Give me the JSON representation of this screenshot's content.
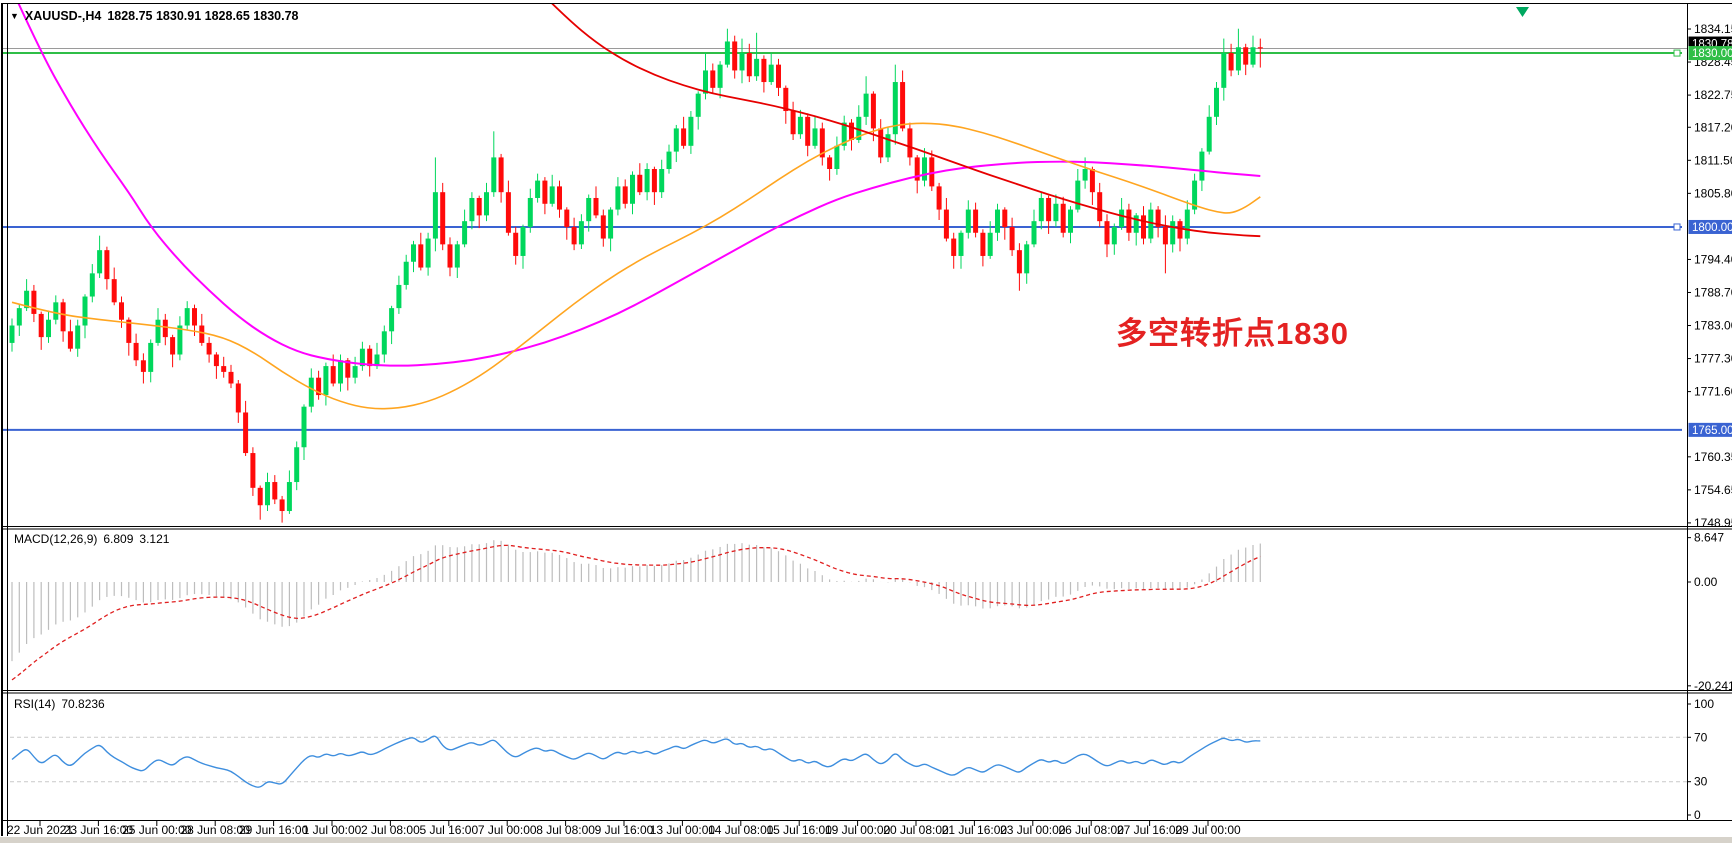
{
  "title": {
    "symbol": "XAUUSD-,H4",
    "ohlc": "1828.75 1830.91 1828.65 1830.78"
  },
  "annotation": {
    "text": "多空转折点1830",
    "color": "#E42222"
  },
  "macd_panel": {
    "header": "MACD(12,26,9)",
    "value_main": "6.809",
    "value_signal": "3.121",
    "axis_labels": [
      "8.647",
      "0.00",
      "-20.241"
    ]
  },
  "rsi_panel": {
    "header": "RSI(14)",
    "value": "70.8236",
    "axis_labels": [
      "100",
      "70",
      "30",
      "0"
    ]
  },
  "price_axis": {
    "ticks": [
      1834.15,
      1828.45,
      1822.75,
      1817.2,
      1811.5,
      1805.8,
      1794.4,
      1788.7,
      1783.0,
      1777.3,
      1771.6,
      1760.35,
      1754.65,
      1748.95
    ],
    "current_price_label": {
      "text": "1830.78",
      "bg": "#000000",
      "fg": "#FFFFFF"
    }
  },
  "hlines": [
    {
      "price": 1830.0,
      "label": "1830.00",
      "color": "#2FBE47",
      "handle": true
    },
    {
      "price": 1800.0,
      "label": "1800.00",
      "color": "#3A63D2",
      "handle": true
    },
    {
      "price": 1765.0,
      "label": "1765.00",
      "color": "#3A63D2",
      "handle": false
    }
  ],
  "time_axis": {
    "labels": [
      "22 Jun 2021",
      "23 Jun 16:00",
      "25 Jun 00:00",
      "28 Jun 08:00",
      "29 Jun 16:00",
      "1 Jul 00:00",
      "2 Jul 08:00",
      "5 Jul 16:00",
      "7 Jul 00:00",
      "8 Jul 08:00",
      "9 Jul 16:00",
      "13 Jul 00:00",
      "14 Jul 08:00",
      "15 Jul 16:00",
      "19 Jul 00:00",
      "20 Jul 08:00",
      "21 Jul 16:00",
      "23 Jul 00:00",
      "26 Jul 08:00",
      "27 Jul 16:00",
      "29 Jul 00:00"
    ]
  },
  "colors": {
    "candle_up": "#00D75C",
    "candle_down": "#FF0A0A",
    "ma_slow": "#FF00FF",
    "ma_mid": "#FFA520",
    "ma_trend": "#E60000",
    "macd_hist": "#BDBDBD",
    "macd_signal": "#E02020",
    "rsi_line": "#3E8EDE",
    "level_dash": "#C9C9C9",
    "current_price_line": "#9A9A9A",
    "frame": "#000000"
  },
  "chart_data": {
    "type": "candlestick",
    "symbol": "XAUUSD-",
    "timeframe": "H4",
    "title": "XAUUSD-,H4 1828.75 1830.91 1828.65 1830.78",
    "y_axis": {
      "min": 1748.95,
      "max": 1834.15,
      "grid": false
    },
    "first_open": 1780,
    "closes": [
      1783,
      1786,
      1789,
      1785,
      1781,
      1784,
      1787,
      1782,
      1779,
      1783,
      1788,
      1792,
      1796,
      1791,
      1787,
      1784,
      1780,
      1777,
      1775,
      1780,
      1784,
      1781,
      1778,
      1783,
      1786,
      1783,
      1780,
      1778,
      1776,
      1775,
      1773,
      1768,
      1761,
      1755,
      1752,
      1756,
      1753,
      1751,
      1756,
      1762,
      1769,
      1774,
      1771,
      1776,
      1773,
      1777,
      1774,
      1776,
      1779,
      1776,
      1778,
      1782,
      1786,
      1790,
      1794,
      1797,
      1793,
      1798,
      1806,
      1797,
      1793,
      1797,
      1801,
      1805,
      1802,
      1806,
      1812,
      1806,
      1799,
      1795,
      1800,
      1805,
      1808,
      1804,
      1807,
      1803,
      1800,
      1797,
      1801,
      1805,
      1802,
      1798,
      1803,
      1807,
      1804,
      1809,
      1806,
      1810,
      1806,
      1810,
      1813,
      1817,
      1814,
      1819,
      1823,
      1827,
      1824,
      1828,
      1832,
      1827,
      1830,
      1826,
      1829,
      1825,
      1828,
      1824,
      1820,
      1816,
      1819,
      1814,
      1817,
      1812,
      1810,
      1814,
      1818,
      1815,
      1819,
      1823,
      1817,
      1812,
      1816,
      1825,
      1817,
      1812,
      1808,
      1812,
      1807,
      1803,
      1798,
      1795,
      1799,
      1803,
      1799,
      1795,
      1799,
      1803,
      1800,
      1796,
      1792,
      1797,
      1801,
      1805,
      1801,
      1804,
      1799,
      1803,
      1808,
      1810,
      1806,
      1801,
      1797,
      1800,
      1803,
      1799,
      1802,
      1798,
      1803,
      1800,
      1797,
      1801,
      1798,
      1803,
      1808,
      1813,
      1819,
      1824,
      1830,
      1827,
      1831,
      1828,
      1831,
      1830.8
    ],
    "high_overrides": {
      "12": 1798.5,
      "58": 1812,
      "66": 1816.5,
      "95": 1830,
      "98": 1834.2,
      "100": 1832.5,
      "102": 1833.5,
      "117": 1826,
      "121": 1828,
      "147": 1812,
      "166": 1832.5,
      "168": 1834.2,
      "170": 1833,
      "171": 1832.5
    },
    "low_overrides": {
      "0": 1778.5,
      "18": 1773,
      "34": 1749.5,
      "37": 1749,
      "60": 1791.5,
      "69": 1793.5,
      "112": 1808,
      "129": 1792.8,
      "138": 1789,
      "150": 1794.8,
      "158": 1792,
      "171": 1827.5
    },
    "moving_averages": [
      {
        "name": "ma-slow-magenta",
        "color": "#FF00FF",
        "width": 2,
        "anchors": [
          [
            0,
            1841
          ],
          [
            4,
            1830
          ],
          [
            8,
            1821
          ],
          [
            12,
            1813
          ],
          [
            16,
            1806
          ],
          [
            19,
            1800
          ],
          [
            23,
            1794
          ],
          [
            27,
            1789
          ],
          [
            31,
            1784.5
          ],
          [
            35,
            1781
          ],
          [
            39,
            1778.5
          ],
          [
            43,
            1777.2
          ],
          [
            48,
            1776.3
          ],
          [
            53,
            1776
          ],
          [
            58,
            1776.3
          ],
          [
            63,
            1777
          ],
          [
            68,
            1778.3
          ],
          [
            73,
            1780
          ],
          [
            78,
            1782.3
          ],
          [
            83,
            1785
          ],
          [
            88,
            1788.3
          ],
          [
            93,
            1791.8
          ],
          [
            98,
            1795.3
          ],
          [
            103,
            1798.8
          ],
          [
            108,
            1802
          ],
          [
            113,
            1804.8
          ],
          [
            118,
            1806.8
          ],
          [
            123,
            1808.5
          ],
          [
            128,
            1809.8
          ],
          [
            133,
            1810.6
          ],
          [
            138,
            1811.1
          ],
          [
            143,
            1811.3
          ],
          [
            148,
            1811.2
          ],
          [
            153,
            1810.8
          ],
          [
            158,
            1810.3
          ],
          [
            163,
            1809.7
          ],
          [
            167,
            1809.2
          ],
          [
            171,
            1808.8
          ]
        ]
      },
      {
        "name": "ma-mid-orange",
        "color": "#FFA520",
        "width": 1.6,
        "anchors": [
          [
            0,
            1787
          ],
          [
            6,
            1785
          ],
          [
            12,
            1784
          ],
          [
            18,
            1783.2
          ],
          [
            24,
            1782.3
          ],
          [
            29,
            1781
          ],
          [
            33,
            1778.5
          ],
          [
            37,
            1775
          ],
          [
            41,
            1772
          ],
          [
            45,
            1769.8
          ],
          [
            49,
            1768.6
          ],
          [
            53,
            1768.7
          ],
          [
            57,
            1769.8
          ],
          [
            61,
            1772
          ],
          [
            65,
            1775
          ],
          [
            69,
            1778.8
          ],
          [
            73,
            1782.8
          ],
          [
            77,
            1786.8
          ],
          [
            81,
            1790.4
          ],
          [
            85,
            1793.6
          ],
          [
            89,
            1796.3
          ],
          [
            93,
            1798.8
          ],
          [
            97,
            1801.6
          ],
          [
            101,
            1804.8
          ],
          [
            105,
            1808.2
          ],
          [
            109,
            1811.4
          ],
          [
            113,
            1814
          ],
          [
            117,
            1816.2
          ],
          [
            121,
            1817.6
          ],
          [
            125,
            1818
          ],
          [
            129,
            1817.5
          ],
          [
            133,
            1816.3
          ],
          [
            137,
            1814.7
          ],
          [
            141,
            1812.9
          ],
          [
            145,
            1811.1
          ],
          [
            149,
            1809.4
          ],
          [
            153,
            1807.8
          ],
          [
            157,
            1806
          ],
          [
            160,
            1804.6
          ],
          [
            163,
            1803.3
          ],
          [
            165,
            1802.6
          ],
          [
            167,
            1802.3
          ],
          [
            169,
            1803.4
          ],
          [
            171,
            1805.2
          ]
        ]
      },
      {
        "name": "ma-trend-red",
        "color": "#E60000",
        "width": 1.8,
        "anchors": [
          [
            72,
            1841
          ],
          [
            76,
            1836
          ],
          [
            80,
            1831.8
          ],
          [
            84,
            1828.6
          ],
          [
            88,
            1826.2
          ],
          [
            92,
            1824.4
          ],
          [
            96,
            1823
          ],
          [
            100,
            1822
          ],
          [
            104,
            1821
          ],
          [
            108,
            1819.8
          ],
          [
            112,
            1818.4
          ],
          [
            116,
            1816.8
          ],
          [
            120,
            1815.1
          ],
          [
            124,
            1813.4
          ],
          [
            128,
            1811.6
          ],
          [
            132,
            1809.8
          ],
          [
            136,
            1808.1
          ],
          [
            140,
            1806.4
          ],
          [
            144,
            1804.8
          ],
          [
            148,
            1803.3
          ],
          [
            152,
            1801.9
          ],
          [
            156,
            1800.7
          ],
          [
            160,
            1799.7
          ],
          [
            164,
            1799
          ],
          [
            168,
            1798.6
          ],
          [
            171,
            1798.4
          ]
        ]
      }
    ],
    "macd": {
      "fast": 12,
      "slow": 26,
      "signal": 9,
      "seed_fast": 1779,
      "seed_slow": 1796,
      "seed_signal": -20,
      "last_main": 6.809,
      "last_signal": 3.121,
      "axis": [
        8.647,
        0,
        -20.241
      ]
    },
    "rsi": {
      "period": 14,
      "last_value": 70.8236,
      "levels": [
        70,
        30
      ],
      "range": [
        0,
        100
      ]
    },
    "current_price": 1830.78,
    "horizontal_levels": [
      1830.0,
      1800.0,
      1765.0
    ]
  }
}
